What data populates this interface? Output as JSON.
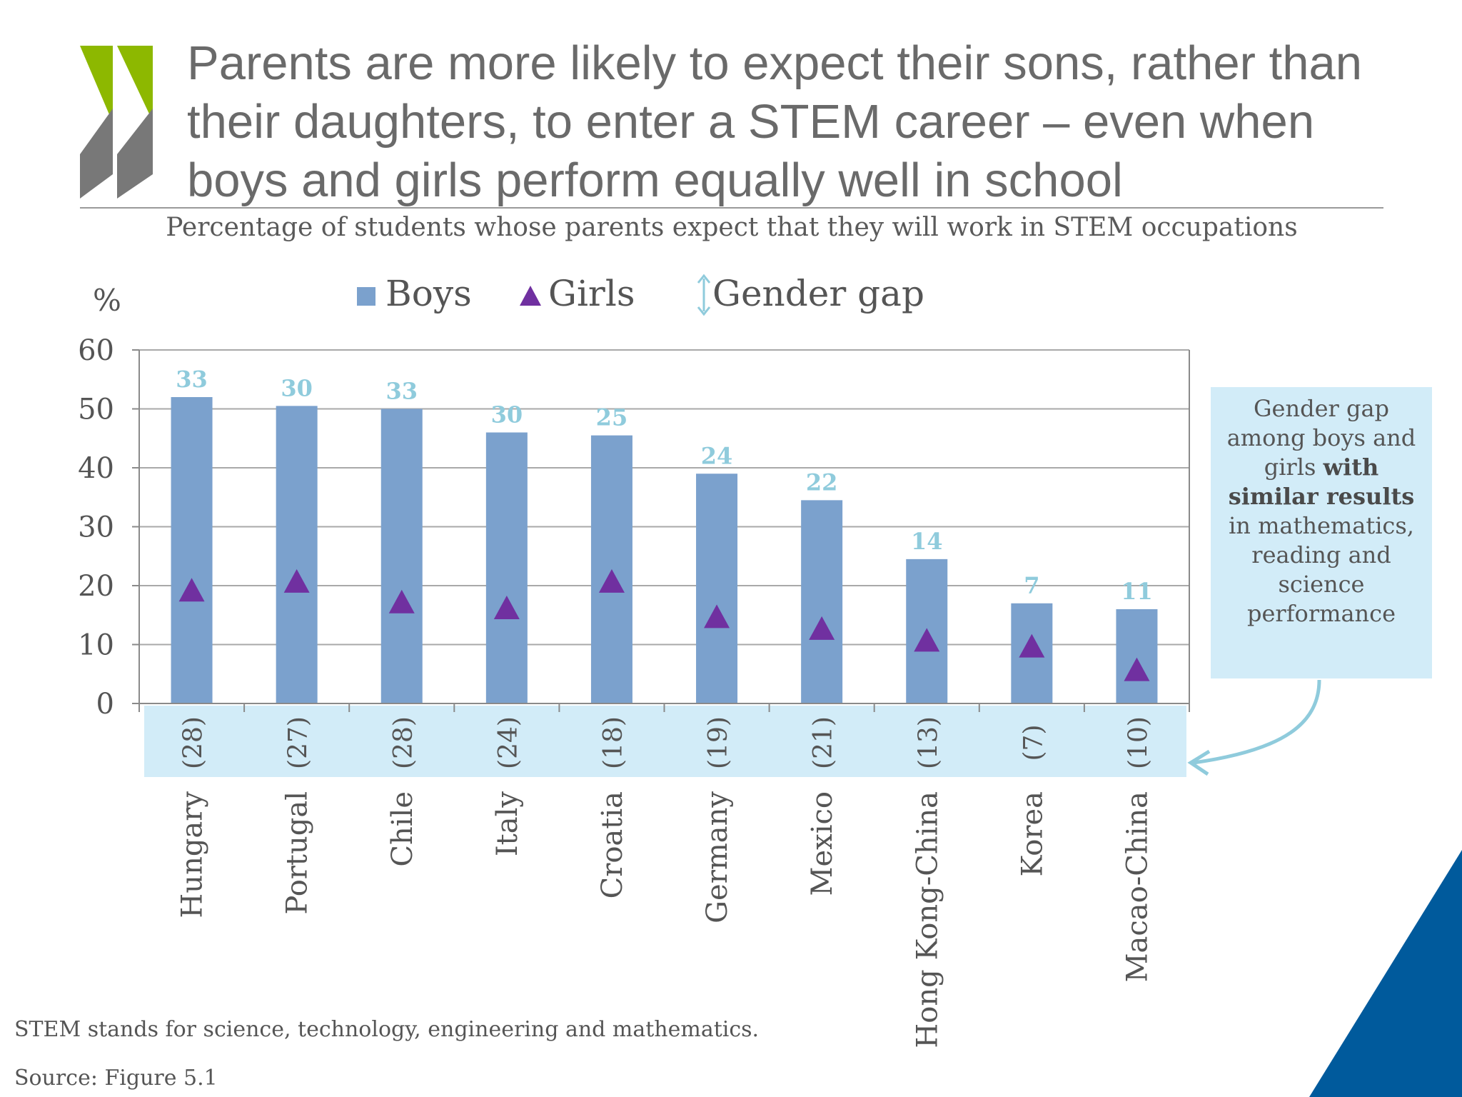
{
  "slide": {
    "title": "Parents are more likely to expect their sons, rather than their daughters, to enter a STEM career – even when boys and girls perform equally well in school",
    "subtitle": "Percentage of students whose parents expect that they will work in STEM occupations",
    "footnote": "STEM stands for science, technology, engineering and mathematics.",
    "source": "Source: Figure 5.1",
    "callout": {
      "line1": "Gender gap among boys and girls",
      "bold": "with similar results",
      "line2": "in mathematics, reading and science performance"
    }
  },
  "colors": {
    "boys": "#7ba1cd",
    "girls": "#7030a0",
    "gap_label": "#8fcbdc",
    "gap_band": "#d2ecf8",
    "logo_green": "#8db800",
    "logo_grey": "#787878",
    "corner_blue": "#005a9c"
  },
  "chart_data": {
    "type": "bar",
    "ylabel": "%",
    "ylim": [
      0,
      60
    ],
    "yticks": [
      0,
      10,
      20,
      30,
      40,
      50,
      60
    ],
    "grid": true,
    "legend": [
      "Boys",
      "Girls",
      "Gender gap"
    ],
    "legend_position": "top",
    "categories": [
      "Hungary",
      "Portugal",
      "Chile",
      "Italy",
      "Croatia",
      "Germany",
      "Mexico",
      "Hong Kong-China",
      "Korea",
      "Macao-China"
    ],
    "series": [
      {
        "name": "Boys",
        "kind": "bar",
        "values": [
          52,
          50.5,
          50,
          46,
          45.5,
          39,
          34.5,
          24.5,
          17,
          16
        ]
      },
      {
        "name": "Girls",
        "kind": "marker-triangle",
        "values": [
          19,
          20.5,
          17,
          16,
          20.5,
          14.5,
          12.5,
          10.5,
          9.5,
          5.5
        ]
      }
    ],
    "gender_gap": [
      33,
      30,
      33,
      30,
      25,
      24,
      22,
      14,
      7,
      11
    ],
    "gender_gap_similar_results": [
      "(28)",
      "(27)",
      "(28)",
      "(24)",
      "(18)",
      "(19)",
      "(21)",
      "(13)",
      "(7)",
      "(10)"
    ]
  }
}
